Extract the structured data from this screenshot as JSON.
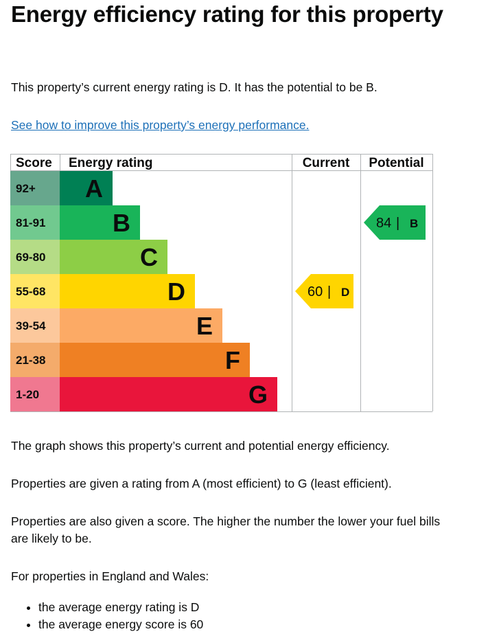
{
  "heading": "Energy efficiency rating for this property",
  "intro": "This property’s current energy rating is D. It has the potential to be B.",
  "improve_link": "See how to improve this property’s energy performance.",
  "chart_data": {
    "type": "table",
    "columns": [
      "Score",
      "Energy rating",
      "Current",
      "Potential"
    ],
    "bands": [
      {
        "score": "92+",
        "letter": "A",
        "color": "#008054",
        "score_bg": "#67a78d"
      },
      {
        "score": "81-91",
        "letter": "B",
        "color": "#19b459",
        "score_bg": "#71c98f"
      },
      {
        "score": "69-80",
        "letter": "C",
        "color": "#8dce46",
        "score_bg": "#b5dc86"
      },
      {
        "score": "55-68",
        "letter": "D",
        "color": "#ffd500",
        "score_bg": "#ffe564"
      },
      {
        "score": "39-54",
        "letter": "E",
        "color": "#fcaa65",
        "score_bg": "#fcc89c"
      },
      {
        "score": "21-38",
        "letter": "F",
        "color": "#ef8023",
        "score_bg": "#f4ab6b"
      },
      {
        "score": "1-20",
        "letter": "G",
        "color": "#e9153b",
        "score_bg": "#f07890"
      }
    ],
    "current": {
      "value": 60,
      "band": "D"
    },
    "potential": {
      "value": 84,
      "band": "B"
    }
  },
  "description": {
    "graph": "The graph shows this property’s current and potential energy efficiency.",
    "rating_range": "Properties are given a rating from A (most efficient) to G (least efficient).",
    "score_note": "Properties are also given a score. The higher the number the lower your fuel bills are likely to be.",
    "england_wales": "For properties in England and Wales:",
    "averages": [
      "the average energy rating is D",
      "the average energy score is 60"
    ]
  }
}
